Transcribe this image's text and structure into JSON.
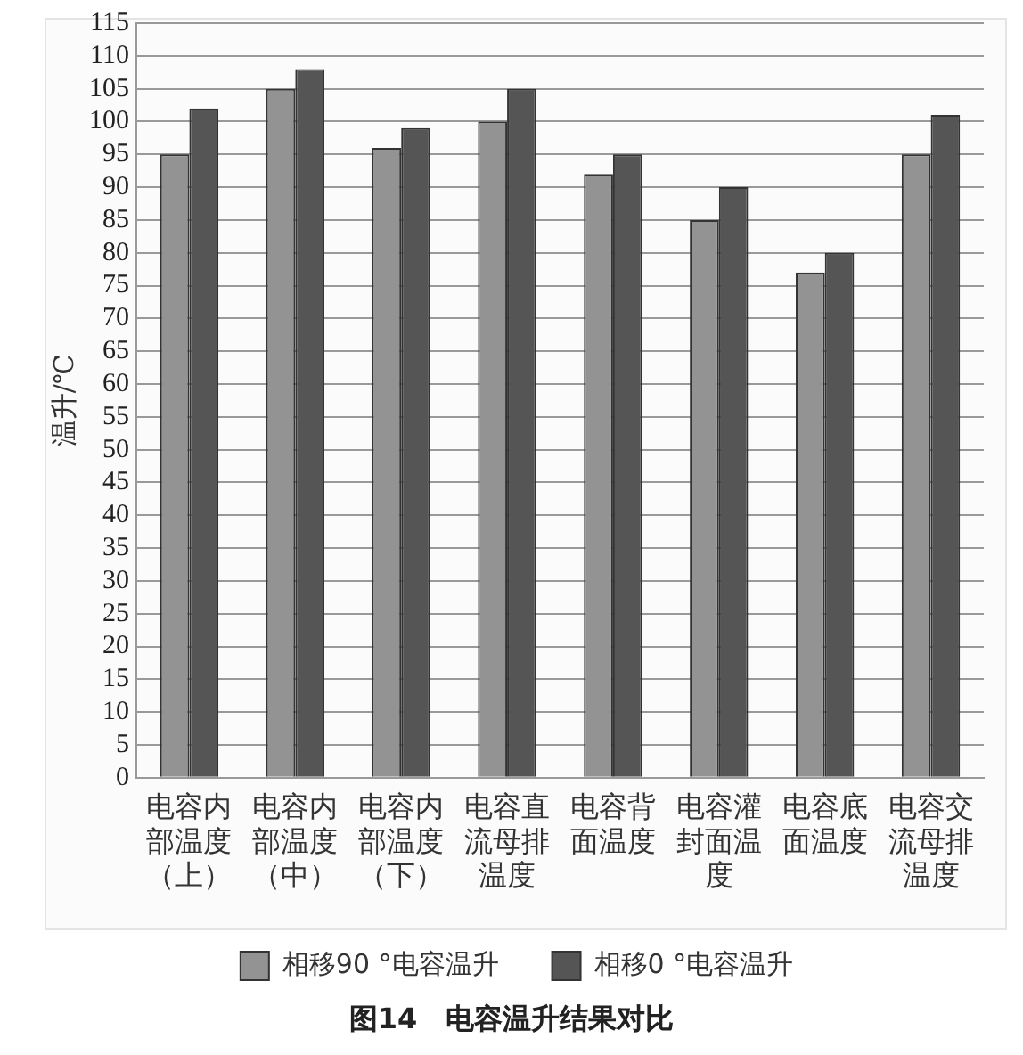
{
  "chart_data": {
    "type": "bar",
    "title": "图14　电容温升结果对比",
    "ylabel": "温升/℃",
    "categories": [
      "电容内部温度（上）",
      "电容内部温度（中）",
      "电容内部温度（下）",
      "电容直流母排温度",
      "电容背面温度",
      "电容灌封面温度",
      "电容底面温度",
      "电容交流母排温度"
    ],
    "series": [
      {
        "name": "相移90 °电容温升",
        "color": "#939393",
        "values": [
          95,
          105,
          96,
          100,
          92,
          85,
          77,
          95
        ]
      },
      {
        "name": "相移0 °电容温升",
        "color": "#555555",
        "values": [
          102,
          108,
          99,
          105,
          95,
          90,
          80,
          101
        ]
      }
    ],
    "ylim": [
      0,
      115
    ],
    "yticks": [
      0,
      5,
      10,
      15,
      20,
      25,
      30,
      35,
      40,
      45,
      50,
      55,
      60,
      65,
      70,
      75,
      80,
      85,
      90,
      95,
      100,
      105,
      110,
      115
    ],
    "grid": "y",
    "legend": "bottom"
  }
}
